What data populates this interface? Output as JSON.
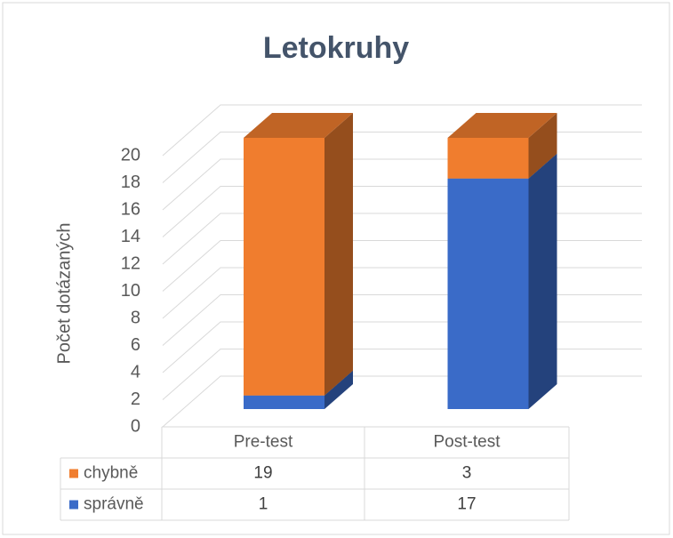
{
  "chart_data": {
    "type": "bar3d_stacked",
    "title": "Letokruhy",
    "ylabel": "Počet dotázaných",
    "categories": [
      "Pre-test",
      "Post-test"
    ],
    "series": [
      {
        "name": "chybně",
        "color": "#f07d2e",
        "values": [
          19,
          3
        ]
      },
      {
        "name": "správně",
        "color": "#3a6bc8",
        "values": [
          1,
          17
        ]
      }
    ],
    "ylim": [
      0,
      20
    ],
    "yticks": [
      0,
      2,
      4,
      6,
      8,
      10,
      12,
      14,
      16,
      18,
      20
    ],
    "grid": true
  }
}
